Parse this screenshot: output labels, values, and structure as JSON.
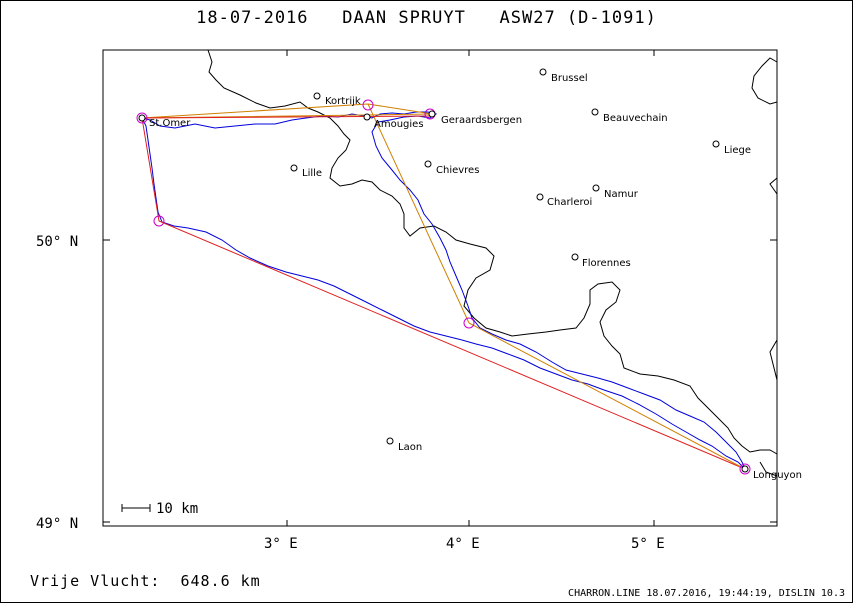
{
  "header": {
    "title": "18-07-2016   DAAN SPRUYT   ASW27 (D-1091)"
  },
  "footer": {
    "distance_label": "Vrije Vlucht:  648.6 km",
    "program_info": "CHARRON.LINE 18.07.2016, 19:44:19, DISLIN 10.3"
  },
  "axes": {
    "x_ticks": [
      "3° E",
      "4° E",
      "5° E"
    ],
    "y_ticks": [
      "50° N",
      "49° N"
    ]
  },
  "scale_bar": {
    "label": "10 km"
  },
  "places": [
    {
      "name": "Brussel"
    },
    {
      "name": "Kortrijk"
    },
    {
      "name": "St.Omer"
    },
    {
      "name": "Geraardsbergen"
    },
    {
      "name": "Amougies"
    },
    {
      "name": "Beauvechain"
    },
    {
      "name": "Liege"
    },
    {
      "name": "Lille"
    },
    {
      "name": "Chievres"
    },
    {
      "name": "Namur"
    },
    {
      "name": "Charleroi"
    },
    {
      "name": "Florennes"
    },
    {
      "name": "Laon"
    },
    {
      "name": "Longuyon"
    }
  ],
  "colors": {
    "task_line": "#e02020",
    "track_line": "#0000dd",
    "border_line": "#000000",
    "turnpoint": "#cc00cc",
    "accent_orange": "#d08000"
  }
}
